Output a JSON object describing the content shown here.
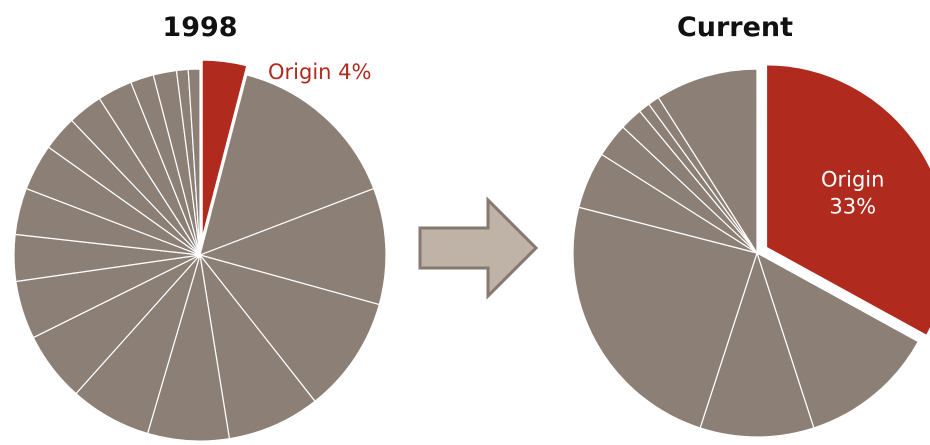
{
  "colors": {
    "highlight": "#B02A1E",
    "base": "#8C7F75",
    "arrow_fill": "#BFB2A6",
    "arrow_stroke": "#867A70",
    "slice_border": "#ffffff"
  },
  "arrow": {
    "icon": "right-arrow-icon"
  },
  "chart_data": [
    {
      "type": "pie",
      "title": "1998",
      "start": "12 o'clock, clockwise",
      "slices": [
        {
          "label": "Origin 4%",
          "value": 4,
          "highlight": true
        },
        {
          "label": "",
          "value": 15
        },
        {
          "label": "",
          "value": 10
        },
        {
          "label": "",
          "value": 10
        },
        {
          "label": "",
          "value": 8
        },
        {
          "label": "",
          "value": 7
        },
        {
          "label": "",
          "value": 7
        },
        {
          "label": "",
          "value": 6
        },
        {
          "label": "",
          "value": 5
        },
        {
          "label": "",
          "value": 4
        },
        {
          "label": "",
          "value": 4
        },
        {
          "label": "",
          "value": 4
        },
        {
          "label": "",
          "value": 3
        },
        {
          "label": "",
          "value": 3
        },
        {
          "label": "",
          "value": 3
        },
        {
          "label": "",
          "value": 2
        },
        {
          "label": "",
          "value": 2
        },
        {
          "label": "",
          "value": 1
        },
        {
          "label": "",
          "value": 1
        }
      ]
    },
    {
      "type": "pie",
      "title": "Current",
      "start": "12 o'clock, clockwise",
      "slices": [
        {
          "label": "Origin 33%",
          "label_lines": [
            "Origin",
            "33%"
          ],
          "value": 33,
          "highlight": true
        },
        {
          "label": "",
          "value": 12
        },
        {
          "label": "",
          "value": 10
        },
        {
          "label": "",
          "value": 24
        },
        {
          "label": "",
          "value": 5
        },
        {
          "label": "",
          "value": 3
        },
        {
          "label": "",
          "value": 2
        },
        {
          "label": "",
          "value": 1
        },
        {
          "label": "",
          "value": 1
        },
        {
          "label": "",
          "value": 9
        }
      ]
    }
  ]
}
